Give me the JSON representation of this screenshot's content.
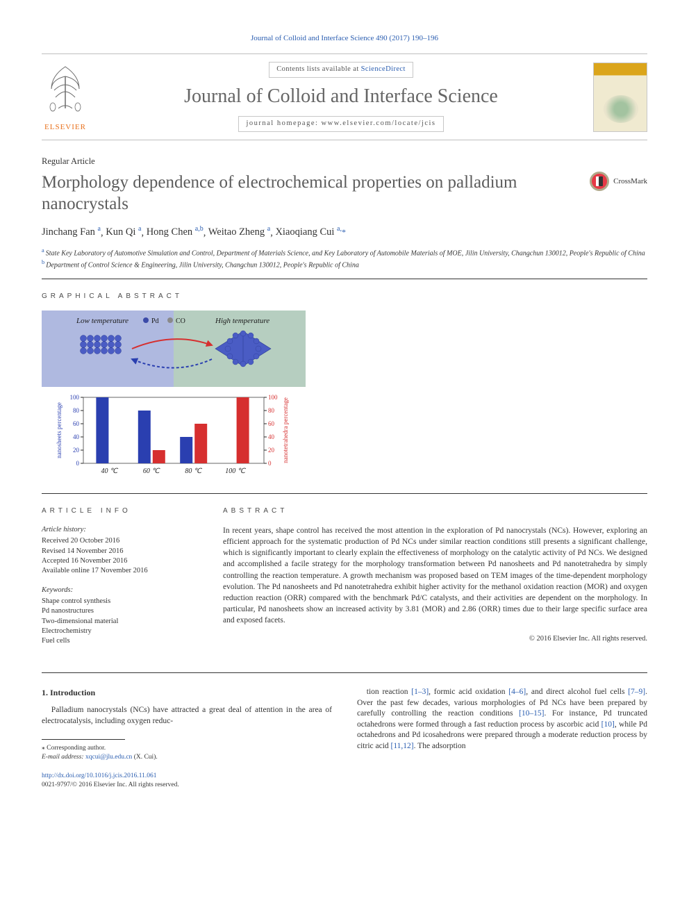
{
  "citation": "Journal of Colloid and Interface Science 490 (2017) 190–196",
  "masthead": {
    "contents_prefix": "Contents lists available at ",
    "contents_link": "ScienceDirect",
    "journal_name": "Journal of Colloid and Interface Science",
    "homepage_prefix": "journal homepage: ",
    "homepage_url": "www.elsevier.com/locate/jcis",
    "publisher_label": "ELSEVIER"
  },
  "article_type": "Regular Article",
  "title": "Morphology dependence of electrochemical properties on palladium nanocrystals",
  "crossmark_label": "CrossMark",
  "authors": [
    {
      "name": "Jinchang Fan",
      "aff": "a"
    },
    {
      "name": "Kun Qi",
      "aff": "a"
    },
    {
      "name": "Hong Chen",
      "aff": "a,b"
    },
    {
      "name": "Weitao Zheng",
      "aff": "a"
    },
    {
      "name": "Xiaoqiang Cui",
      "aff": "a,",
      "corr": "*"
    }
  ],
  "affiliations": [
    {
      "mark": "a",
      "text": "State Key Laboratory of Automotive Simulation and Control, Department of Materials Science, and Key Laboratory of Automobile Materials of MOE, Jilin University, Changchun 130012, People's Republic of China"
    },
    {
      "mark": "b",
      "text": "Department of Control Science & Engineering, Jilin University, Changchun 130012, People's Republic of China"
    }
  ],
  "ga_label": "GRAPHICAL ABSTRACT",
  "graphical_abstract": {
    "low_temp_label": "Low temperature",
    "high_temp_label": "High temperature",
    "legend_pd": "Pd",
    "legend_co": "CO",
    "chart": {
      "type": "bar",
      "categories": [
        "40 ℃",
        "60 ℃",
        "80 ℃",
        "100 ℃"
      ],
      "left_axis_label": "nanosheets percentage",
      "right_axis_label": "nanotetrahedra percentage",
      "series": [
        {
          "name": "nanosheets",
          "color": "#2a3fb0",
          "values": [
            100,
            80,
            40,
            0
          ]
        },
        {
          "name": "nanotetrahedra",
          "color": "#d62f2f",
          "values": [
            0,
            20,
            60,
            100
          ]
        }
      ],
      "ylim": [
        0,
        100
      ],
      "ytick_step": 20,
      "bg_left": "#6d80c6",
      "bg_right": "#7aa68c",
      "axis_color": "#262626",
      "left_axis_text_color": "#2a3fb0",
      "right_axis_text_color": "#d62f2f",
      "font_size_axis": 9
    }
  },
  "info_label": "ARTICLE INFO",
  "abstract_label": "ABSTRACT",
  "article_info": {
    "history_heading": "Article history:",
    "history": [
      "Received 20 October 2016",
      "Revised 14 November 2016",
      "Accepted 16 November 2016",
      "Available online 17 November 2016"
    ],
    "keywords_heading": "Keywords:",
    "keywords": [
      "Shape control synthesis",
      "Pd nanostructures",
      "Two-dimensional material",
      "Electrochemistry",
      "Fuel cells"
    ]
  },
  "abstract_text": "In recent years, shape control has received the most attention in the exploration of Pd nanocrystals (NCs). However, exploring an efficient approach for the systematic production of Pd NCs under similar reaction conditions still presents a significant challenge, which is significantly important to clearly explain the effectiveness of morphology on the catalytic activity of Pd NCs. We designed and accomplished a facile strategy for the morphology transformation between Pd nanosheets and Pd nanotetrahedra by simply controlling the reaction temperature. A growth mechanism was proposed based on TEM images of the time-dependent morphology evolution. The Pd nanosheets and Pd nanotetrahedra exhibit higher activity for the methanol oxidation reaction (MOR) and oxygen reduction reaction (ORR) compared with the benchmark Pd/C catalysts, and their activities are dependent on the morphology. In particular, Pd nanosheets show an increased activity by 3.81 (MOR) and 2.86 (ORR) times due to their large specific surface area and exposed facets.",
  "copyright": "© 2016 Elsevier Inc. All rights reserved.",
  "intro_heading": "1. Introduction",
  "intro_col1": "Palladium nanocrystals (NCs) have attracted a great deal of attention in the area of electrocatalysis, including oxygen reduc-",
  "intro_col2_a": "tion reaction ",
  "intro_col2_b": ", formic acid oxidation ",
  "intro_col2_c": ", and direct alcohol fuel cells ",
  "intro_col2_d": ". Over the past few decades, various morphologies of Pd NCs have been prepared by carefully controlling the reaction conditions ",
  "intro_col2_e": ". For instance, Pd truncated octahedrons were formed through a fast reduction process by ascorbic acid ",
  "intro_col2_f": ", while Pd octahedrons and Pd icosahedrons were prepared through a moderate reduction process by citric acid ",
  "intro_col2_g": ". The adsorption",
  "refs": {
    "r1": "[1–3]",
    "r2": "[4–6]",
    "r3": "[7–9]",
    "r4": "[10–15]",
    "r5": "[10]",
    "r6": "[11,12]"
  },
  "footnote": {
    "corr_label": "⁎ Corresponding author.",
    "email_label": "E-mail address: ",
    "email": "xqcui@jlu.edu.cn",
    "email_suffix": " (X. Cui)."
  },
  "footer": {
    "doi": "http://dx.doi.org/10.1016/j.jcis.2016.11.061",
    "issn_line": "0021-9797/© 2016 Elsevier Inc. All rights reserved."
  },
  "colors": {
    "link": "#2a5db0",
    "orange": "#e9711c",
    "rule": "#333333"
  }
}
